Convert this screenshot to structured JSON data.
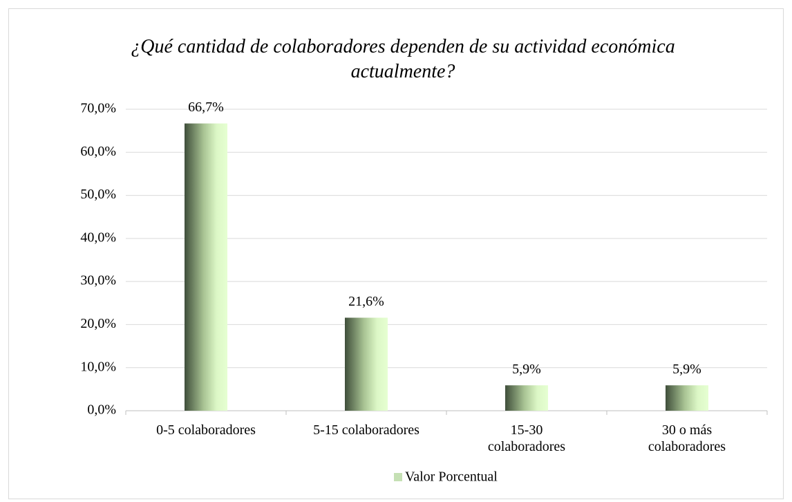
{
  "chart_data": {
    "type": "bar",
    "title": "¿Qué cantidad de colaboradores dependen de su actividad económica actualmente?",
    "categories": [
      "0-5 colaboradores",
      "5-15 colaboradores",
      "15-30\ncolaboradores",
      "30 o más\ncolaboradores"
    ],
    "series": [
      {
        "name": "Valor Porcentual",
        "color": "#c5e0b4",
        "values": [
          66.7,
          21.6,
          5.9,
          5.9
        ],
        "value_labels": [
          "66,7%",
          "21,6%",
          "5,9%",
          "5,9%"
        ]
      }
    ],
    "ylim": [
      0,
      70
    ],
    "yticks": [
      {
        "value": 0,
        "label": "0,0%"
      },
      {
        "value": 10,
        "label": "10,0%"
      },
      {
        "value": 20,
        "label": "20,0%"
      },
      {
        "value": 30,
        "label": "30,0%"
      },
      {
        "value": 40,
        "label": "40,0%"
      },
      {
        "value": 50,
        "label": "50,0%"
      },
      {
        "value": 60,
        "label": "60,0%"
      },
      {
        "value": 70,
        "label": "70,0%"
      }
    ],
    "grid": true,
    "legend": "bottom"
  }
}
